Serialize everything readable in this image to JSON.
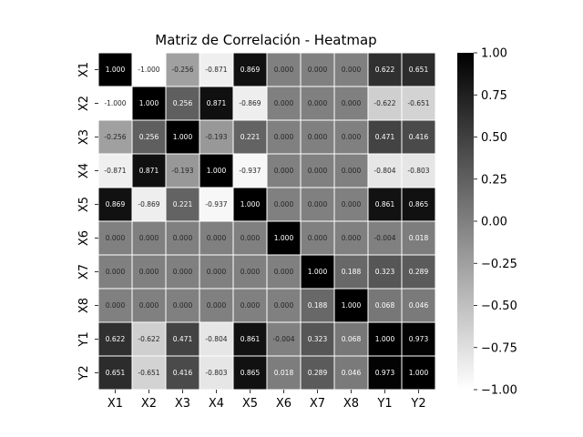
{
  "chart_data": {
    "type": "heatmap",
    "title": "Matriz de Correlación - Heatmap",
    "x_labels": [
      "X1",
      "X2",
      "X3",
      "X4",
      "X5",
      "X6",
      "X7",
      "X8",
      "Y1",
      "Y2"
    ],
    "y_labels": [
      "X1",
      "X2",
      "X3",
      "X4",
      "X5",
      "X6",
      "X7",
      "X8",
      "Y1",
      "Y2"
    ],
    "matrix": [
      [
        1.0,
        -1.0,
        -0.256,
        -0.871,
        0.869,
        0.0,
        0.0,
        0.0,
        0.622,
        0.651
      ],
      [
        -1.0,
        1.0,
        0.256,
        0.871,
        -0.869,
        0.0,
        0.0,
        0.0,
        -0.622,
        -0.651
      ],
      [
        -0.256,
        0.256,
        1.0,
        -0.193,
        0.221,
        0.0,
        0.0,
        0.0,
        0.471,
        0.416
      ],
      [
        -0.871,
        0.871,
        -0.193,
        1.0,
        -0.937,
        0.0,
        0.0,
        0.0,
        -0.804,
        -0.803
      ],
      [
        0.869,
        -0.869,
        0.221,
        -0.937,
        1.0,
        0.0,
        0.0,
        0.0,
        0.861,
        0.865
      ],
      [
        0.0,
        0.0,
        0.0,
        0.0,
        0.0,
        1.0,
        0.0,
        0.0,
        -0.004,
        0.018
      ],
      [
        0.0,
        0.0,
        0.0,
        0.0,
        0.0,
        0.0,
        1.0,
        0.188,
        0.323,
        0.289
      ],
      [
        0.0,
        0.0,
        0.0,
        0.0,
        0.0,
        0.0,
        0.188,
        1.0,
        0.068,
        0.046
      ],
      [
        0.622,
        -0.622,
        0.471,
        -0.804,
        0.861,
        -0.004,
        0.323,
        0.068,
        1.0,
        0.973
      ],
      [
        0.651,
        -0.651,
        0.416,
        -0.803,
        0.865,
        0.018,
        0.289,
        0.046,
        0.973,
        1.0
      ]
    ],
    "value_format": "3 decimals",
    "colormap": "gray_r",
    "color_low": "#ffffff",
    "color_high": "#000000",
    "vmin": -1.0,
    "vmax": 1.0,
    "colorbar_ticks": [
      "1.00",
      "0.75",
      "0.50",
      "0.25",
      "0.00",
      "−0.25",
      "−0.50",
      "−0.75",
      "−1.00"
    ],
    "colorbar_tick_values": [
      1.0,
      0.75,
      0.5,
      0.25,
      0.0,
      -0.25,
      -0.5,
      -0.75,
      -1.0
    ],
    "cell_border_color": "#ffffff",
    "grid": false
  }
}
